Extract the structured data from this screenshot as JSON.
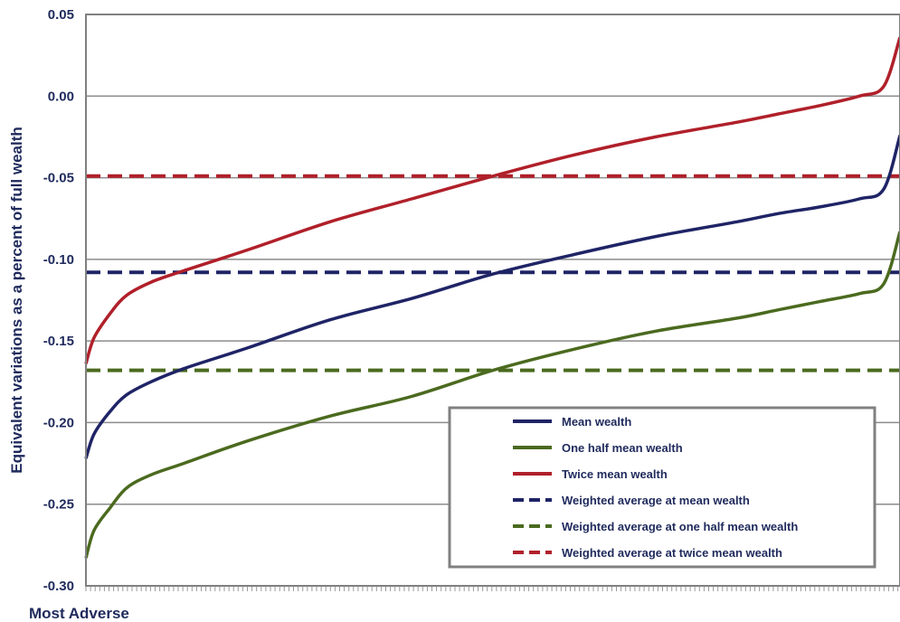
{
  "chart_data": {
    "type": "line",
    "title": "",
    "ylabel": "Equivalent variations as a percent of full wealth",
    "xlabel": "",
    "x_start_label": "Most Adverse",
    "ylim": [
      -0.3,
      0.05
    ],
    "yticks": [
      "0.05",
      "0.00",
      "-0.05",
      "-0.10",
      "-0.15",
      "-0.20",
      "-0.25",
      "-0.30"
    ],
    "ytick_values": [
      0.05,
      0.0,
      -0.05,
      -0.1,
      -0.15,
      -0.2,
      -0.25,
      -0.3
    ],
    "grid": true,
    "legend_position": "bottom-right",
    "x": [
      0.0,
      0.01,
      0.03,
      0.05,
      0.08,
      0.12,
      0.2,
      0.3,
      0.4,
      0.5,
      0.6,
      0.7,
      0.8,
      0.85,
      0.9,
      0.95,
      0.98,
      1.0
    ],
    "series": [
      {
        "name": "Mean wealth",
        "style": "solid",
        "color": "#1f2466",
        "values": [
          -0.222,
          -0.207,
          -0.193,
          -0.183,
          -0.175,
          -0.167,
          -0.154,
          -0.137,
          -0.124,
          -0.109,
          -0.097,
          -0.086,
          -0.077,
          -0.072,
          -0.068,
          -0.063,
          -0.057,
          -0.024
        ]
      },
      {
        "name": "One half mean wealth",
        "style": "solid",
        "color": "#4b6a1f",
        "values": [
          -0.283,
          -0.266,
          -0.252,
          -0.24,
          -0.232,
          -0.225,
          -0.211,
          -0.196,
          -0.184,
          -0.168,
          -0.155,
          -0.144,
          -0.136,
          -0.131,
          -0.126,
          -0.121,
          -0.115,
          -0.083
        ]
      },
      {
        "name": "Twice mean wealth",
        "style": "solid",
        "color": "#b0202a",
        "values": [
          -0.164,
          -0.148,
          -0.133,
          -0.122,
          -0.114,
          -0.107,
          -0.094,
          -0.077,
          -0.063,
          -0.049,
          -0.036,
          -0.025,
          -0.016,
          -0.011,
          -0.006,
          0.0,
          0.006,
          0.036
        ]
      },
      {
        "name": "Weighted average at mean wealth",
        "style": "dashed",
        "color": "#1f2466",
        "constant": -0.108
      },
      {
        "name": "Weighted average at one half mean wealth",
        "style": "dashed",
        "color": "#4b6a1f",
        "constant": -0.168
      },
      {
        "name": "Weighted average at twice mean wealth",
        "style": "dashed",
        "color": "#b0202a",
        "constant": -0.049
      }
    ]
  },
  "colors": {
    "text": "#1f2a5c",
    "grid": "#8c8c8c",
    "frame": "#808080"
  }
}
